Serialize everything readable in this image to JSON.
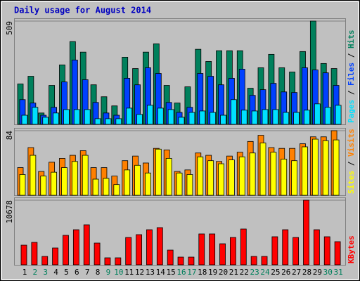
{
  "chart_data": [
    {
      "type": "bar",
      "title": "Daily usage for August 2014",
      "legend_separator": "/",
      "ylim": [
        0,
        509
      ],
      "yticks": [
        509
      ],
      "series": [
        {
          "name": "Pages",
          "color": "#00e0ff",
          "values": [
            45,
            84,
            35,
            56,
            73,
            73,
            73,
            28,
            28,
            28,
            80,
            49,
            94,
            80,
            73,
            35,
            59,
            66,
            59,
            45,
            122,
            70,
            66,
            73,
            73,
            59,
            59,
            70,
            101,
            84,
            94
          ]
        },
        {
          "name": "Files",
          "color": "#0040ff",
          "values": [
            122,
            105,
            45,
            84,
            209,
            317,
            220,
            108,
            56,
            45,
            227,
            195,
            279,
            251,
            108,
            59,
            84,
            251,
            237,
            195,
            227,
            272,
            143,
            171,
            202,
            160,
            157,
            279,
            268,
            254,
            192
          ]
        },
        {
          "name": "Hits",
          "color": "#00805c",
          "values": [
            199,
            237,
            56,
            192,
            293,
            408,
            356,
            195,
            136,
            91,
            331,
            275,
            356,
            397,
            192,
            105,
            185,
            370,
            310,
            363,
            363,
            363,
            178,
            279,
            345,
            279,
            258,
            359,
            509,
            300,
            275
          ]
        }
      ]
    },
    {
      "type": "bar",
      "ylim": [
        0,
        84
      ],
      "yticks": [
        84
      ],
      "series": [
        {
          "name": "Sites",
          "color": "#ffff00",
          "values": [
            27,
            52,
            25,
            30,
            36,
            44,
            52,
            21,
            22,
            14,
            33,
            39,
            29,
            60,
            48,
            29,
            27,
            50,
            45,
            41,
            46,
            50,
            55,
            68,
            56,
            47,
            45,
            63,
            73,
            71,
            72
          ]
        },
        {
          "name": "Visits",
          "color": "#ff8000",
          "values": [
            36,
            62,
            31,
            43,
            48,
            52,
            58,
            36,
            36,
            25,
            45,
            51,
            42,
            61,
            59,
            31,
            33,
            55,
            52,
            44,
            51,
            56,
            70,
            78,
            62,
            61,
            61,
            67,
            76,
            76,
            84
          ]
        }
      ]
    },
    {
      "type": "bar",
      "ylim": [
        0,
        10678
      ],
      "yticks": [
        10678
      ],
      "categories": [
        "1",
        "2",
        "3",
        "4",
        "5",
        "6",
        "7",
        "8",
        "9",
        "10",
        "11",
        "12",
        "13",
        "14",
        "15",
        "16",
        "17",
        "18",
        "19",
        "20",
        "21",
        "22",
        "23",
        "24",
        "25",
        "26",
        "27",
        "28",
        "29",
        "30",
        "31"
      ],
      "category_colors": [
        "#000000",
        "#00805c",
        "#00805c",
        "#000000",
        "#000000",
        "#000000",
        "#000000",
        "#000000",
        "#00805c",
        "#00805c",
        "#000000",
        "#000000",
        "#000000",
        "#000000",
        "#000000",
        "#00805c",
        "#00805c",
        "#000000",
        "#000000",
        "#000000",
        "#000000",
        "#000000",
        "#00805c",
        "#00805c",
        "#000000",
        "#000000",
        "#000000",
        "#000000",
        "#000000",
        "#00805c",
        "#00805c"
      ],
      "series": [
        {
          "name": "KBytes",
          "color": "#ff0000",
          "values": [
            3250,
            3714,
            1393,
            2786,
            4875,
            5803,
            6616,
            3598,
            1161,
            1161,
            4527,
            4991,
            5803,
            6151,
            2437,
            1277,
            1277,
            5107,
            5107,
            3482,
            4527,
            5920,
            1393,
            1393,
            4643,
            5803,
            4527,
            10678,
            5803,
            4643,
            3830
          ]
        }
      ]
    }
  ]
}
